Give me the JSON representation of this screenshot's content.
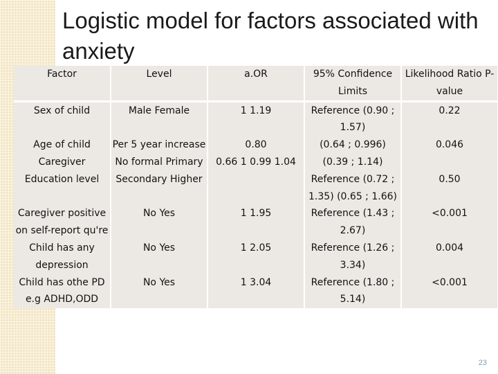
{
  "slide": {
    "title": "Logistic model for factors associated with anxiety",
    "page_number": "23"
  },
  "table": {
    "headers": {
      "factor": "Factor",
      "level": "Level",
      "aor": "a.OR",
      "ci": "95% Confidence Limits",
      "lr": "Likelihood Ratio P-value"
    },
    "rows": [
      {
        "factor": "Sex of child",
        "level": "Male Female",
        "aor": "1 1.19",
        "ci": "Reference (0.90 ; 1.57)",
        "lr": "0.22"
      },
      {
        "factor": "Age of child",
        "level": "Per 5 year increase",
        "aor": "0.80",
        "ci": "(0.64 ; 0.996)",
        "lr": "0.046"
      },
      {
        "factor": "Caregiver Education level",
        "level": "No formal Primary Secondary Higher",
        "aor": "0.66 1 0.99 1.04",
        "ci": "(0.39 ; 1.14) Reference (0.72 ; 1.35) (0.65 ; 1.66)",
        "lr": "0.50"
      },
      {
        "factor": "Caregiver positive on self-report qu're",
        "level": "No Yes",
        "aor": "1 1.95",
        "ci": "Reference (1.43 ; 2.67)",
        "lr": "<0.001"
      },
      {
        "factor": "Child has any depression",
        "level": "No Yes",
        "aor": "1 2.05",
        "ci": "Reference (1.26 ; 3.34)",
        "lr": "0.004"
      },
      {
        "factor": "Child has othe PD e.g ADHD,ODD",
        "level": "No Yes",
        "aor": "1 3.04",
        "ci": "Reference (1.80 ; 5.14)",
        "lr": "<0.001"
      }
    ]
  }
}
